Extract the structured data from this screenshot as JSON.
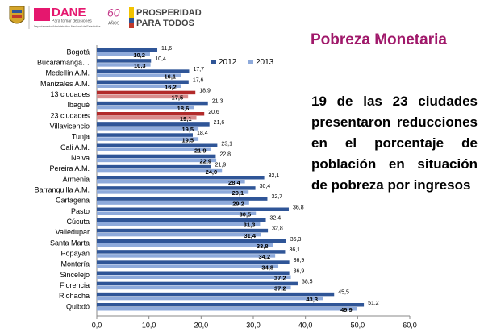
{
  "header": {
    "logo_name": "DANE",
    "logo_tagline": "Para tomar decisiones",
    "logo_subtitle": "Departamento Administrativo Nacional de Estadística",
    "anniversary": "60",
    "anniversary_label": "AÑOS",
    "slogan_line1": "PROSPERIDAD",
    "slogan_line2": "PARA TODOS"
  },
  "title": "Pobreza Monetaria",
  "summary": "19 de las 23 ciudades presentaron reducciones en el porcentaje de población en situación de pobreza por ingresos",
  "chart_data": {
    "type": "bar",
    "orientation": "horizontal",
    "categories": [
      "Bogotá",
      "Bucaramanga…",
      "Medellín A.M.",
      "Manizales A.M.",
      "13 ciudades",
      "Ibagué",
      "23 ciudades",
      "Villavicencio",
      "Tunja",
      "Cali A.M.",
      "Neiva",
      "Pereira A.M.",
      "Armenia",
      "Barranquilla A.M.",
      "Cartagena",
      "Pasto",
      "Cúcuta",
      "Valledupar",
      "Santa Marta",
      "Popayán",
      "Montería",
      "Sincelejo",
      "Florencia",
      "Riohacha",
      "Quibdó"
    ],
    "series": [
      {
        "name": "2012",
        "color": "#2f5597",
        "point_colors": [
          "#2f5597",
          "#2f5597",
          "#2f5597",
          "#2f5597",
          "#b22a2a",
          "#2f5597",
          "#b22a2a",
          "#2f5597",
          "#2f5597",
          "#2f5597",
          "#2f5597",
          "#2f5597",
          "#2f5597",
          "#2f5597",
          "#2f5597",
          "#2f5597",
          "#2f5597",
          "#2f5597",
          "#2f5597",
          "#2f5597",
          "#2f5597",
          "#2f5597",
          "#2f5597",
          "#2f5597",
          "#2f5597"
        ],
        "values": [
          11.6,
          10.4,
          17.7,
          17.6,
          18.9,
          21.3,
          20.6,
          21.6,
          18.4,
          23.1,
          22.8,
          21.9,
          32.1,
          30.4,
          32.7,
          36.8,
          32.4,
          32.8,
          36.3,
          36.1,
          36.9,
          36.9,
          38.5,
          45.5,
          51.2
        ],
        "value_labels": [
          "11,6",
          "10,4",
          "17,7",
          "17,6",
          "18,9",
          "21,3",
          "20,6",
          "21,6",
          "18,4",
          "23,1",
          "22,8",
          "21,9",
          "32,1",
          "30,4",
          "32,7",
          "36,8",
          "32,4",
          "32,8",
          "36,3",
          "36,1",
          "36,9",
          "36,9",
          "38,5",
          "45,5",
          "51,2"
        ]
      },
      {
        "name": "2013",
        "color": "#8eaadb",
        "point_colors": [
          "#8eaadb",
          "#8eaadb",
          "#8eaadb",
          "#8eaadb",
          "#d98c8c",
          "#8eaadb",
          "#d98c8c",
          "#8eaadb",
          "#8eaadb",
          "#8eaadb",
          "#8eaadb",
          "#8eaadb",
          "#8eaadb",
          "#8eaadb",
          "#8eaadb",
          "#8eaadb",
          "#8eaadb",
          "#8eaadb",
          "#8eaadb",
          "#8eaadb",
          "#8eaadb",
          "#8eaadb",
          "#8eaadb",
          "#8eaadb",
          "#8eaadb"
        ],
        "values": [
          10.2,
          10.3,
          16.1,
          16.2,
          17.5,
          18.6,
          19.1,
          19.5,
          19.5,
          21.9,
          22.9,
          24.0,
          28.4,
          29.1,
          29.2,
          30.5,
          31.3,
          31.4,
          33.8,
          34.2,
          34.8,
          37.2,
          37.2,
          43.3,
          49.9
        ],
        "value_labels": [
          "10,2",
          "10,3",
          "16,1",
          "16,2",
          "17,5",
          "18,6",
          "19,1",
          "19,5",
          "19,5",
          "21,9",
          "22,9",
          "24,0",
          "28,4",
          "29,1",
          "29,2",
          "30,5",
          "31,3",
          "31,4",
          "33,8",
          "34,2",
          "34,8",
          "37,2",
          "37,2",
          "43,3",
          "49,9"
        ]
      }
    ],
    "xlim": [
      0,
      60
    ],
    "xticks": [
      {
        "value": 0,
        "label": "0,0"
      },
      {
        "value": 10,
        "label": "10,0"
      },
      {
        "value": 20,
        "label": "20,0"
      },
      {
        "value": 30,
        "label": "30,0"
      },
      {
        "value": 40,
        "label": "40,0"
      },
      {
        "value": 50,
        "label": "50,0"
      },
      {
        "value": 60,
        "label": "60,0"
      }
    ],
    "legend": "top-right",
    "grid": false
  }
}
